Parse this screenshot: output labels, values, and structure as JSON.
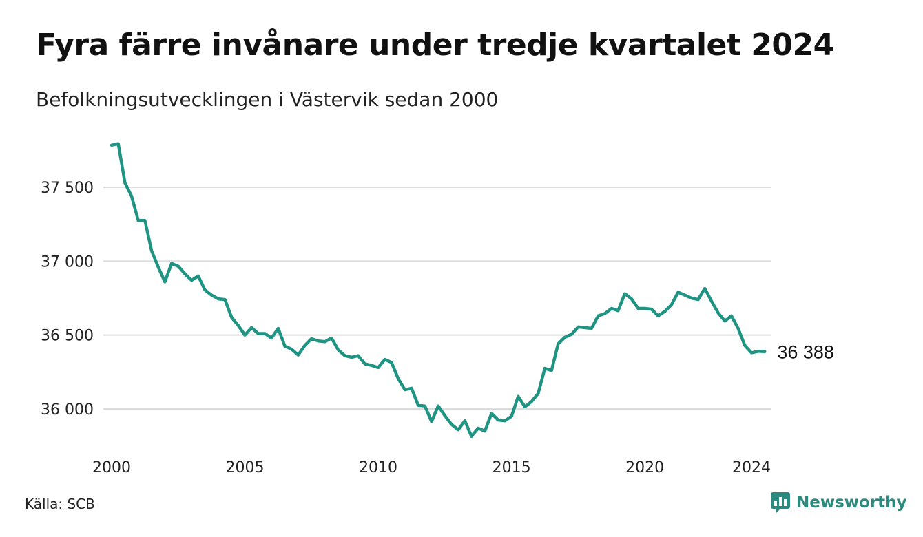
{
  "title": "Fyra färre invånare under tredje kvartalet 2024",
  "subtitle": "Befolkningsutvecklingen i Västervik sedan 2000",
  "source": "Källa: SCB",
  "brand": {
    "name": "Newsworthy",
    "icon": "newsworthy-logo-icon",
    "color": "#2a8a7d"
  },
  "chart_data": {
    "type": "line",
    "x_ticks": [
      2000,
      2005,
      2010,
      2015,
      2020,
      2024
    ],
    "y_ticks": [
      36000,
      36500,
      37000,
      37500
    ],
    "y_tick_labels": [
      "36 000",
      "36 500",
      "37 000",
      "37 500"
    ],
    "x_tick_labels": [
      "2000",
      "2005",
      "2010",
      "2015",
      "2020",
      "2024"
    ],
    "xlim": [
      2000,
      2024.75
    ],
    "ylim": [
      35750,
      37880
    ],
    "grid": true,
    "line_color": "#1f9483",
    "end_label": "36 388",
    "series": [
      {
        "x": [
          2000.0,
          2000.25,
          2000.5,
          2000.75,
          2001.0,
          2001.25,
          2001.5,
          2001.75,
          2002.0,
          2002.25,
          2002.5,
          2002.75,
          2003.0,
          2003.25,
          2003.5,
          2003.75,
          2004.0,
          2004.25,
          2004.5,
          2004.75,
          2005.0,
          2005.25,
          2005.5,
          2005.75,
          2006.0,
          2006.25,
          2006.5,
          2006.75,
          2007.0,
          2007.25,
          2007.5,
          2007.75,
          2008.0,
          2008.25,
          2008.5,
          2008.75,
          2009.0,
          2009.25,
          2009.5,
          2009.75,
          2010.0,
          2010.25,
          2010.5,
          2010.75,
          2011.0,
          2011.25,
          2011.5,
          2011.75,
          2012.0,
          2012.25,
          2012.5,
          2012.75,
          2013.0,
          2013.25,
          2013.5,
          2013.75,
          2014.0,
          2014.25,
          2014.5,
          2014.75,
          2015.0,
          2015.25,
          2015.5,
          2015.75,
          2016.0,
          2016.25,
          2016.5,
          2016.75,
          2017.0,
          2017.25,
          2017.5,
          2017.75,
          2018.0,
          2018.25,
          2018.5,
          2018.75,
          2019.0,
          2019.25,
          2019.5,
          2019.75,
          2020.0,
          2020.25,
          2020.5,
          2020.75,
          2021.0,
          2021.25,
          2021.5,
          2021.75,
          2022.0,
          2022.25,
          2022.5,
          2022.75,
          2023.0,
          2023.25,
          2023.5,
          2023.75,
          2024.0,
          2024.25,
          2024.5
        ],
        "y": [
          37785,
          37795,
          37530,
          37440,
          37275,
          37275,
          37070,
          36960,
          36860,
          36985,
          36965,
          36915,
          36870,
          36900,
          36805,
          36770,
          36745,
          36740,
          36620,
          36565,
          36500,
          36550,
          36510,
          36510,
          36480,
          36545,
          36425,
          36405,
          36365,
          36430,
          36475,
          36460,
          36455,
          36480,
          36400,
          36360,
          36350,
          36360,
          36305,
          36295,
          36280,
          36335,
          36315,
          36205,
          36130,
          36140,
          36025,
          36020,
          35915,
          36020,
          35955,
          35895,
          35860,
          35920,
          35815,
          35870,
          35850,
          35970,
          35925,
          35920,
          35950,
          36085,
          36015,
          36050,
          36105,
          36275,
          36260,
          36440,
          36485,
          36505,
          36555,
          36550,
          36545,
          36630,
          36645,
          36680,
          36665,
          36780,
          36745,
          36680,
          36680,
          36675,
          36630,
          36660,
          36705,
          36790,
          36770,
          36750,
          36740,
          36815,
          36730,
          36650,
          36595,
          36630,
          36545,
          36430,
          36380,
          36390,
          36388
        ]
      }
    ]
  }
}
